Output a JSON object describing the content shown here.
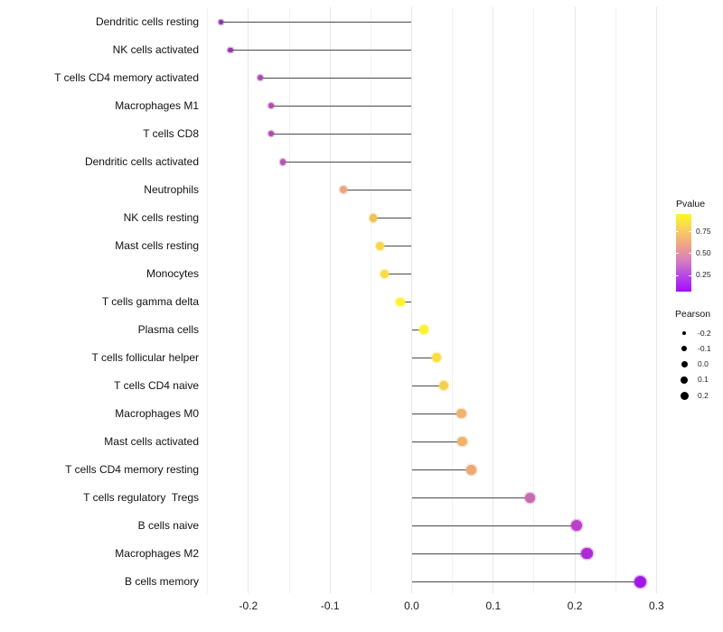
{
  "chart_data": {
    "type": "scatter",
    "variant": "lollipop",
    "title": "",
    "xlabel": "",
    "ylabel": "",
    "x_axis": {
      "range": [
        -0.26,
        0.31
      ],
      "minor_step": 0.05,
      "grid": true,
      "ticks": [
        {
          "value": -0.2,
          "label": "-0.2"
        },
        {
          "value": -0.1,
          "label": "-0.1"
        },
        {
          "value": 0.0,
          "label": "0.0"
        },
        {
          "value": 0.1,
          "label": "0.1"
        },
        {
          "value": 0.2,
          "label": "0.2"
        },
        {
          "value": 0.3,
          "label": "0.3"
        }
      ]
    },
    "points": [
      {
        "label": "Dendritic cells resting",
        "pearson": -0.234,
        "color": "#8a33a6",
        "size": 4.7
      },
      {
        "label": "NK cells activated",
        "pearson": -0.222,
        "color": "#9036ac",
        "size": 5.1
      },
      {
        "label": "T cells CD4 memory activated",
        "pearson": -0.185,
        "color": "#aa48b2",
        "size": 6.0
      },
      {
        "label": "Macrophages M1",
        "pearson": -0.172,
        "color": "#af4caf",
        "size": 6.3
      },
      {
        "label": "T cells CD8",
        "pearson": -0.172,
        "color": "#af4caf",
        "size": 6.3
      },
      {
        "label": "Dendritic cells activated",
        "pearson": -0.158,
        "color": "#b656ae",
        "size": 6.6
      },
      {
        "label": "Neutrophils",
        "pearson": -0.084,
        "color": "#eba47d",
        "size": 8.1
      },
      {
        "label": "NK cells resting",
        "pearson": -0.047,
        "color": "#f1c253",
        "size": 8.7
      },
      {
        "label": "Mast cells resting",
        "pearson": -0.039,
        "color": "#f7d64a",
        "size": 8.9
      },
      {
        "label": "Monocytes",
        "pearson": -0.033,
        "color": "#f9dc41",
        "size": 9.0
      },
      {
        "label": "T cells gamma delta",
        "pearson": -0.014,
        "color": "#fcf22d",
        "size": 9.3
      },
      {
        "label": "Plasma cells",
        "pearson": 0.015,
        "color": "#fcf22b",
        "size": 9.7
      },
      {
        "label": "T cells follicular helper",
        "pearson": 0.03,
        "color": "#f8dd41",
        "size": 9.9
      },
      {
        "label": "T cells CD4 naive",
        "pearson": 0.039,
        "color": "#f5d14b",
        "size": 10.1
      },
      {
        "label": "Macrophages M0",
        "pearson": 0.061,
        "color": "#efb36e",
        "size": 10.4
      },
      {
        "label": "Mast cells activated",
        "pearson": 0.062,
        "color": "#efb36e",
        "size": 10.4
      },
      {
        "label": "T cells CD4 memory resting",
        "pearson": 0.073,
        "color": "#eda871",
        "size": 10.5
      },
      {
        "label": "T cells regulatory  Tregs",
        "pearson": 0.145,
        "color": "#c66ab4",
        "size": 11.5
      },
      {
        "label": "B cells naive",
        "pearson": 0.202,
        "color": "#bb41c6",
        "size": 12.2
      },
      {
        "label": "Macrophages M2",
        "pearson": 0.215,
        "color": "#ac2cd3",
        "size": 12.4
      },
      {
        "label": "B cells memory",
        "pearson": 0.28,
        "color": "#a018e6",
        "size": 13.1
      }
    ],
    "legend_position": "right"
  },
  "legends": {
    "pvalue": {
      "title": "Pvalue",
      "gradient_top_to_bottom": [
        "#fbf724",
        "#f8d060",
        "#efa487",
        "#d67ec0",
        "#b446e6",
        "#a70bfd"
      ],
      "range_top": 0.95,
      "range_bottom": 0.06,
      "entries": [
        {
          "value": 0.75,
          "label": "0.75"
        },
        {
          "value": 0.5,
          "label": "0.50"
        },
        {
          "value": 0.25,
          "label": "0.25"
        }
      ]
    },
    "pearson": {
      "title": "Pearson",
      "dot_color": "#000000",
      "entries": [
        {
          "label": "-0.2",
          "diameter": 4.3
        },
        {
          "label": "-0.1",
          "diameter": 5.8
        },
        {
          "label": "0.0",
          "diameter": 7.0
        },
        {
          "label": "0.1",
          "diameter": 8.0
        },
        {
          "label": "0.2",
          "diameter": 9.0
        }
      ]
    }
  },
  "colors": {
    "background": "#ffffff",
    "stem": "#4a4a4a",
    "grid_major": "#e7e7e7",
    "grid_minor": "#f2f2f2",
    "axis_text": "#1a1a1a"
  }
}
